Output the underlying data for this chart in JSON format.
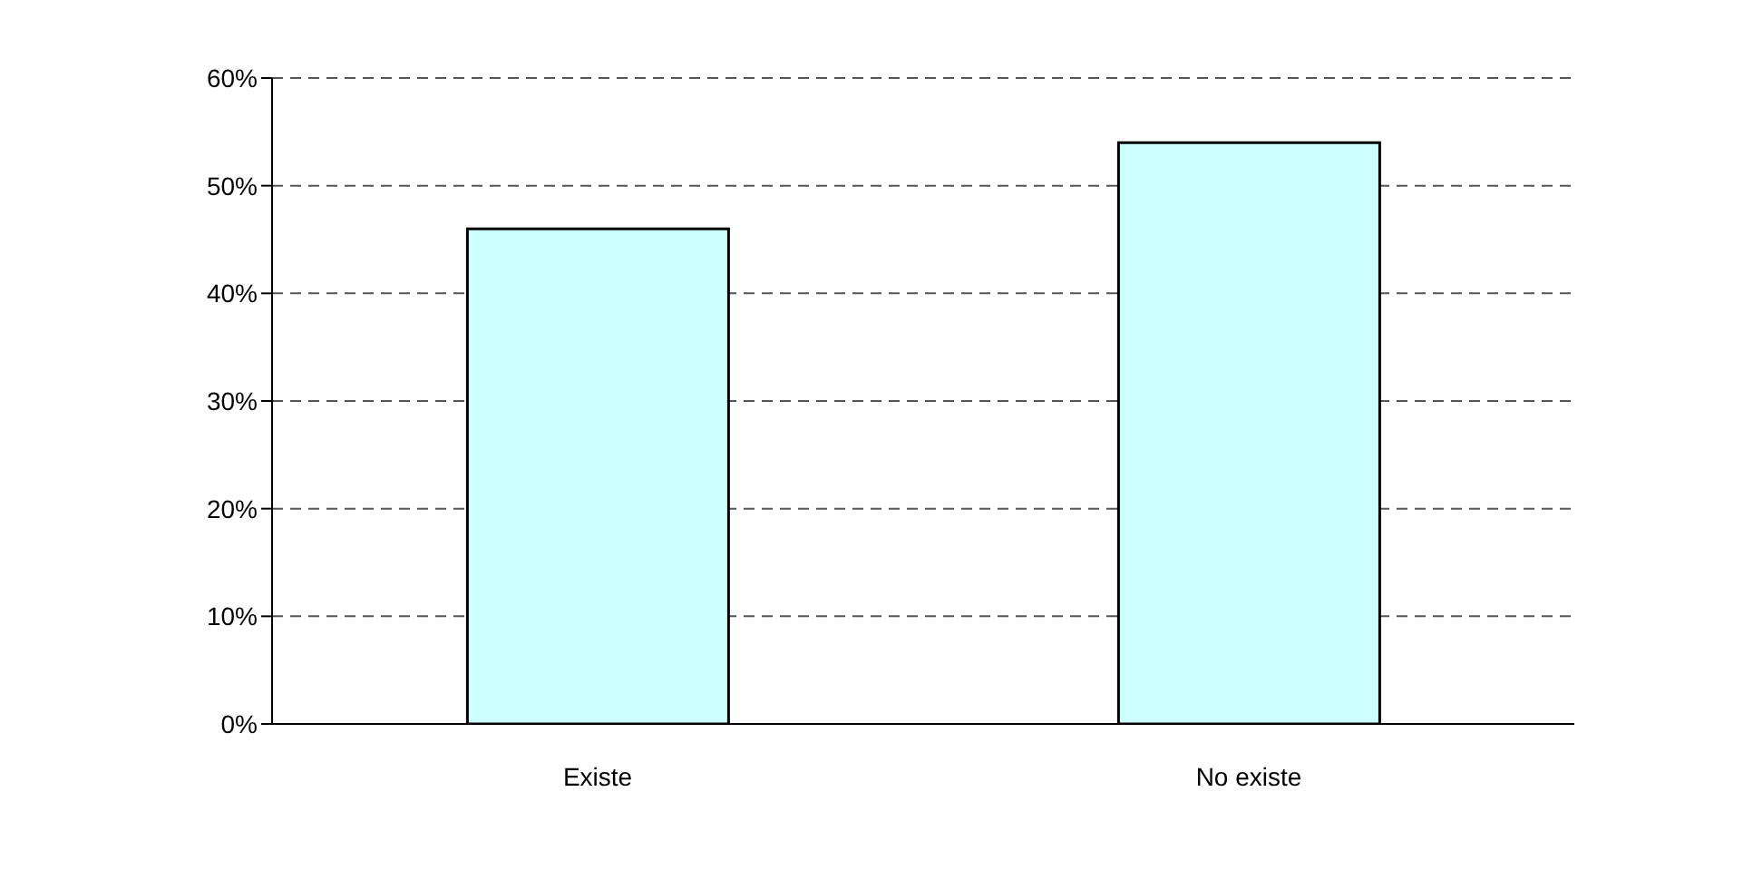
{
  "chart_data": {
    "type": "bar",
    "categories": [
      "Existe",
      "No existe"
    ],
    "values": [
      46,
      54
    ],
    "color": "#ccffff",
    "ylim": [
      0,
      60
    ],
    "yticks": [
      {
        "value": 0,
        "label": "0%"
      },
      {
        "value": 10,
        "label": "10%"
      },
      {
        "value": 20,
        "label": "20%"
      },
      {
        "value": 30,
        "label": "30%"
      },
      {
        "value": 40,
        "label": "40%"
      },
      {
        "value": 50,
        "label": "50%"
      },
      {
        "value": 60,
        "label": "60%"
      }
    ],
    "grid": "y"
  }
}
